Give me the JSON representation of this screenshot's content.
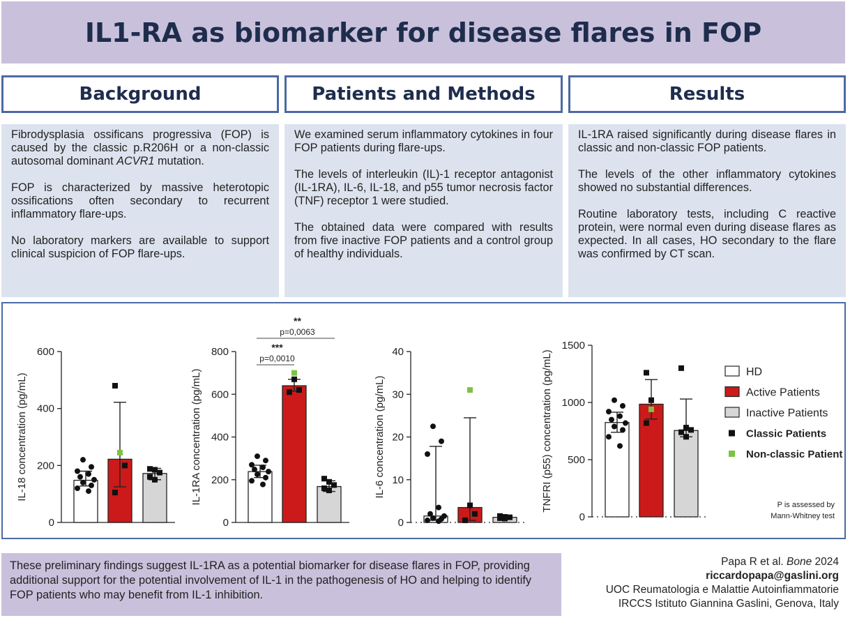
{
  "title": "IL1-RA as biomarker for disease flares in FOP",
  "sections": {
    "background": {
      "heading": "Background",
      "p1_pre": "Fibrodysplasia ossificans progressiva (FOP) is caused by the classic p.R206H or a non-classic autosomal dominant ",
      "p1_gene": "ACVR1",
      "p1_post": " mutation.",
      "p2": "FOP is characterized by massive heterotopic ossifications often secondary to recurrent inflammatory flare-ups.",
      "p3": "No laboratory markers are available to support clinical suspicion of FOP flare-ups."
    },
    "methods": {
      "heading": "Patients and Methods",
      "p1": "We examined serum inflammatory cytokines in four FOP patients during flare-ups.",
      "p2": "The levels of interleukin (IL)-1 receptor antagonist (IL-1RA), IL-6, IL-18, and p55 tumor necrosis factor (TNF) receptor 1 were studied.",
      "p3": "The obtained data were compared with results from five inactive FOP patients and a control group of healthy individuals."
    },
    "results": {
      "heading": "Results",
      "p1": "IL-1RA raised significantly during disease flares in classic and non-classic FOP patients.",
      "p2": "The levels of the other inflammatory cytokines showed no substantial differences.",
      "p3": "Routine laboratory tests, including C reactive protein, were normal even during disease flares as expected. In all cases, HO secondary to the flare was confirmed by CT scan."
    }
  },
  "legend": {
    "items": [
      {
        "label": "HD",
        "kind": "box",
        "color": "#ffffff"
      },
      {
        "label": "Active Patients",
        "kind": "box",
        "color": "#cc1a1a"
      },
      {
        "label": "Inactive Patients",
        "kind": "box",
        "color": "#d6d6d6"
      },
      {
        "label": "Classic Patients",
        "kind": "dot",
        "color": "#111111"
      },
      {
        "label": "Non-classic Patient",
        "kind": "dot",
        "color": "#7dc242"
      }
    ],
    "note_line1": "P is assessed by",
    "note_line2": "Mann-Whitney test"
  },
  "colors": {
    "hd": "#ffffff",
    "active": "#cc1a1a",
    "inactive": "#d6d6d6",
    "classic": "#111111",
    "nonclassic": "#7dc242",
    "border": "#4a6aa3"
  },
  "chart_data": [
    {
      "type": "bar",
      "ylabel": "IL-18 concentration (pg/mL)",
      "ylim": [
        0,
        600
      ],
      "yticks": [
        0,
        200,
        400,
        600
      ],
      "categories": [
        "HD",
        "Active Patients",
        "Inactive Patients"
      ],
      "values": [
        148,
        222,
        172
      ],
      "error_upper": [
        180,
        422,
        190
      ],
      "error_lower": [
        128,
        125,
        150
      ],
      "points": [
        [
          220,
          195,
          180,
          170,
          160,
          150,
          140,
          130,
          120,
          110
        ],
        [
          480,
          245,
          200,
          105
        ],
        [
          188,
          185,
          175,
          160,
          150
        ]
      ],
      "nonclassic_points": [
        null,
        245,
        null
      ],
      "significance": []
    },
    {
      "type": "bar",
      "ylabel": "IL-1RA concentration (pg/mL)",
      "ylim": [
        0,
        800
      ],
      "yticks": [
        0,
        200,
        400,
        600,
        800
      ],
      "categories": [
        "HD",
        "Active Patients",
        "Inactive Patients"
      ],
      "values": [
        238,
        640,
        168
      ],
      "error_upper": [
        268,
        670,
        195
      ],
      "error_lower": [
        210,
        615,
        145
      ],
      "points": [
        [
          310,
          290,
          270,
          258,
          248,
          238,
          225,
          210,
          195,
          178
        ],
        [
          700,
          670,
          620,
          610
        ],
        [
          205,
          190,
          175,
          160,
          150
        ]
      ],
      "nonclassic_points": [
        null,
        700,
        null
      ],
      "significance": [
        {
          "from": 0,
          "to": 1,
          "stars": "***",
          "p": "p=0,0010"
        },
        {
          "from": 0,
          "to": 2,
          "stars": "**",
          "p": "p=0,0063"
        }
      ]
    },
    {
      "type": "bar",
      "ylabel": "IL-6 concentration (pg/mL)",
      "ylim": [
        0,
        40
      ],
      "yticks": [
        0,
        10,
        20,
        30,
        40
      ],
      "categories": [
        "HD",
        "Active Patients",
        "Inactive Patients"
      ],
      "values": [
        1.5,
        3.5,
        1.2
      ],
      "error_upper": [
        17.8,
        24.5,
        1.5
      ],
      "error_lower": [
        0.5,
        0.5,
        0.8
      ],
      "points": [
        [
          22.5,
          19,
          16,
          3.5,
          2,
          1.5,
          1.0,
          0.8,
          0.5,
          0.3
        ],
        [
          31,
          4,
          2,
          0.5
        ],
        [
          1.5,
          1.3,
          1.2,
          1.0,
          0.9
        ]
      ],
      "nonclassic_points": [
        null,
        31,
        null
      ],
      "significance": []
    },
    {
      "type": "bar",
      "ylabel": "TNFRI (p55) concentration (pg/mL)",
      "ylim": [
        0,
        1500
      ],
      "yticks": [
        0,
        500,
        1000,
        1500
      ],
      "categories": [
        "HD",
        "Active Patients",
        "Inactive Patients"
      ],
      "values": [
        825,
        985,
        755
      ],
      "error_upper": [
        915,
        1200,
        1030
      ],
      "error_lower": [
        740,
        855,
        700
      ],
      "points": [
        [
          1020,
          970,
          920,
          880,
          850,
          820,
          790,
          760,
          700,
          620
        ],
        [
          1260,
          1020,
          940,
          820
        ],
        [
          1300,
          780,
          760,
          740,
          700
        ]
      ],
      "nonclassic_points": [
        null,
        940,
        null
      ],
      "significance": []
    }
  ],
  "conclusion": "These preliminary findings suggest IL-1RA as a potential biomarker for disease flares in FOP, providing additional support for the potential involvement of IL-1 in the pathogenesis of HO and helping to identify FOP patients who may benefit from IL-1 inhibition.",
  "reference": {
    "cite_pre": "Papa R et al. ",
    "cite_journal": "Bone",
    "cite_post": " 2024",
    "email": "riccardopapa@gaslini.org",
    "inst1": "UOC Reumatologia e Malattie Autoinfiammatorie",
    "inst2": "IRCCS Istituto Giannina Gaslini, Genova, Italy"
  }
}
